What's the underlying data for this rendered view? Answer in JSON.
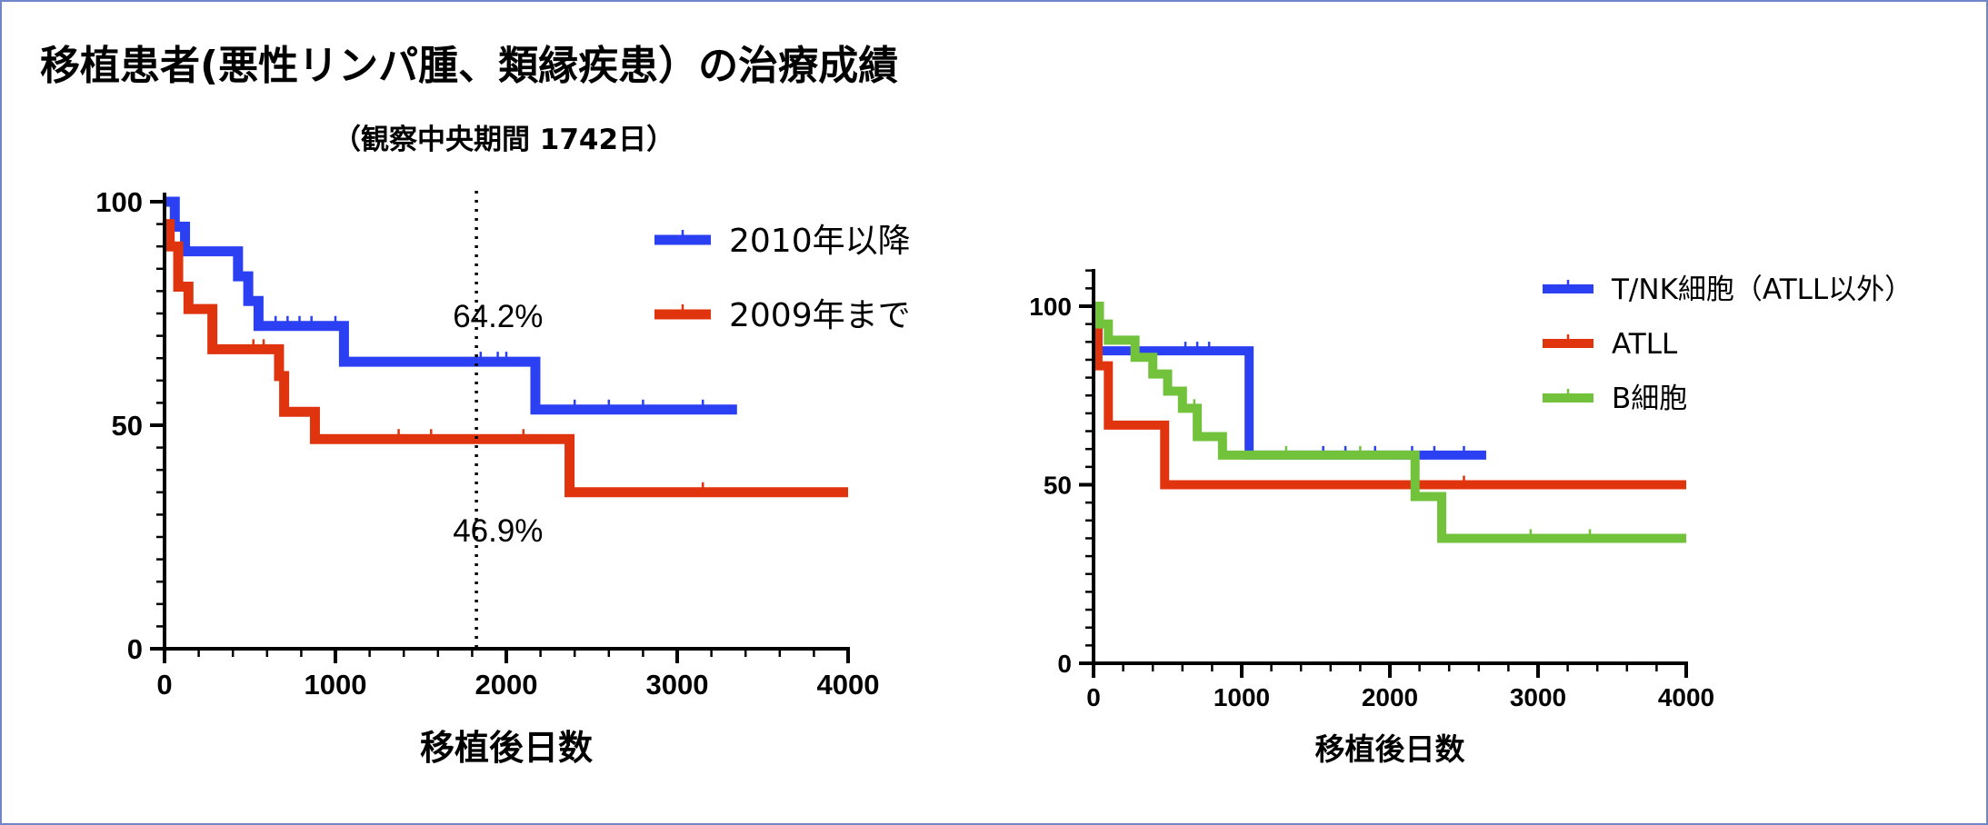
{
  "title": "移植患者(悪性リンパ腫、類縁疾患）の治療成績",
  "subtitle": "（観察中央期間 1742日）",
  "colors": {
    "blue": "#2a40f2",
    "red": "#e0340f",
    "green": "#72c23c",
    "border": "#6f86c9"
  },
  "chart_data": [
    {
      "type": "line",
      "subtype": "kaplan-meier-step",
      "xlabel": "移植後日数",
      "ylabel": "",
      "xlim": [
        0,
        4000
      ],
      "ylim": [
        0,
        110
      ],
      "xticks": [
        "0",
        "1000",
        "2000",
        "3000",
        "4000"
      ],
      "yticks": [
        "0",
        "50",
        "100"
      ],
      "legend_position": "top-right",
      "reference_line": {
        "x": 1825,
        "style": "dotted"
      },
      "annotations": [
        {
          "text": "64.2%",
          "x": 1900,
          "y": 72,
          "series": "2010年以降"
        },
        {
          "text": "46.9%",
          "x": 1900,
          "y": 24,
          "series": "2009年まで"
        }
      ],
      "series": [
        {
          "name": "2010年以降",
          "color": "blue",
          "x": [
            0,
            60,
            120,
            430,
            490,
            550,
            1050,
            2170,
            3350
          ],
          "y": [
            100,
            94.4,
            88.9,
            83.3,
            77.8,
            72.2,
            64.2,
            53.5,
            53.5
          ],
          "censor_x": [
            650,
            720,
            790,
            860,
            1000,
            1850,
            1950,
            2000,
            2400,
            2600,
            2800,
            3150
          ]
        },
        {
          "name": "2009年まで",
          "color": "red",
          "x": [
            0,
            30,
            80,
            140,
            280,
            670,
            700,
            880,
            2370,
            4000
          ],
          "y": [
            95,
            90,
            81,
            76,
            67,
            61,
            53,
            46.9,
            35,
            35
          ],
          "censor_x": [
            520,
            580,
            1370,
            1560,
            2100,
            3150
          ]
        }
      ]
    },
    {
      "type": "line",
      "subtype": "kaplan-meier-step",
      "xlabel": "移植後日数",
      "ylabel": "",
      "xlim": [
        0,
        4000
      ],
      "ylim": [
        0,
        110
      ],
      "xticks": [
        "0",
        "1000",
        "2000",
        "3000",
        "4000"
      ],
      "yticks": [
        "0",
        "50",
        "100"
      ],
      "legend_position": "top-right",
      "series": [
        {
          "name": "T/NK細胞（ATLL以外）",
          "color": "blue",
          "x": [
            0,
            30,
            1050,
            2650
          ],
          "y": [
            100,
            87.5,
            58.3,
            58.3
          ],
          "censor_x": [
            620,
            700,
            780,
            1550,
            1700,
            1900,
            2150,
            2300,
            2500
          ]
        },
        {
          "name": "ATLL",
          "color": "red",
          "x": [
            0,
            30,
            100,
            480,
            4000
          ],
          "y": [
            100,
            83.3,
            66.7,
            50,
            50
          ],
          "censor_x": [
            2500
          ]
        },
        {
          "name": "B細胞",
          "color": "green",
          "x": [
            0,
            40,
            100,
            280,
            400,
            500,
            600,
            700,
            870,
            2170,
            2350,
            4000
          ],
          "y": [
            100,
            95,
            90.5,
            85.7,
            81,
            76.2,
            71.4,
            63.5,
            58.3,
            46.7,
            35,
            35
          ],
          "censor_x": [
            680,
            1300,
            1800,
            2950,
            3350
          ]
        }
      ]
    }
  ]
}
